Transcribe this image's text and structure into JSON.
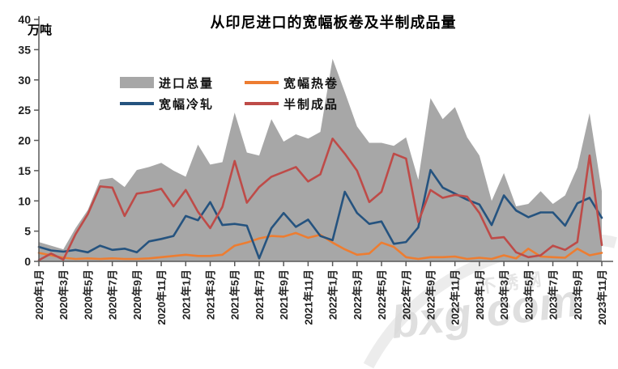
{
  "title": "从印尼进口的宽幅板卷及半制成品量",
  "y_axis_unit": "万吨",
  "watermark_text": "bxg·com",
  "watermark_cn": "不锈钢",
  "colors": {
    "total_area": "#A7A7A7",
    "hot_rolled": "#ED7D31",
    "cold_rolled": "#25537F",
    "semi_finished": "#BE4B48",
    "axis": "#595959",
    "tick_label": "#1F1F1F"
  },
  "legend": [
    {
      "key": "total-imports",
      "label": "进口总量",
      "swatch": "area",
      "color": "#A7A7A7"
    },
    {
      "key": "hot-rolled-coil",
      "label": "宽幅热卷",
      "swatch": "line",
      "color": "#ED7D31"
    },
    {
      "key": "cold-rolled",
      "label": "宽幅冷轧",
      "swatch": "line",
      "color": "#25537F"
    },
    {
      "key": "semi-finished",
      "label": "半制成品",
      "swatch": "line",
      "color": "#BE4B48"
    }
  ],
  "chart_data": {
    "type": "area+line",
    "title": "从印尼进口的宽幅板卷及半制成品量",
    "ylabel": "万吨",
    "ylim": [
      0,
      40
    ],
    "y_tick_interval": 5,
    "x_tick_step": 2,
    "grid": false,
    "legend_position": "inside-top-left",
    "x": [
      "2020年1月",
      "2020年2月",
      "2020年3月",
      "2020年4月",
      "2020年5月",
      "2020年6月",
      "2020年7月",
      "2020年8月",
      "2020年9月",
      "2020年10月",
      "2020年11月",
      "2020年12月",
      "2021年1月",
      "2021年2月",
      "2021年3月",
      "2021年4月",
      "2021年5月",
      "2021年6月",
      "2021年7月",
      "2021年8月",
      "2021年9月",
      "2021年10月",
      "2021年11月",
      "2021年12月",
      "2022年1月",
      "2022年2月",
      "2022年3月",
      "2022年4月",
      "2022年5月",
      "2022年6月",
      "2022年7月",
      "2022年8月",
      "2022年9月",
      "2022年10月",
      "2022年11月",
      "2022年12月",
      "2023年1月",
      "2023年2月",
      "2023年3月",
      "2023年4月",
      "2023年5月",
      "2023年6月",
      "2023年7月",
      "2023年8月",
      "2023年9月",
      "2023年10月",
      "2023年11月"
    ],
    "series": [
      {
        "key": "total-imports",
        "name": "进口总量",
        "render": "area",
        "color": "#A7A7A7",
        "values": [
          3.2,
          2.6,
          2.0,
          5.5,
          8.5,
          13.5,
          13.8,
          12.3,
          15.1,
          15.6,
          16.3,
          15.0,
          14.0,
          19.3,
          16.0,
          16.4,
          24.6,
          18.0,
          17.5,
          23.5,
          19.8,
          21.0,
          20.3,
          21.4,
          33.5,
          28.0,
          22.3,
          19.6,
          19.6,
          19.1,
          20.5,
          13.5,
          27.0,
          23.5,
          25.5,
          20.5,
          17.5,
          10.0,
          14.6,
          9.1,
          9.5,
          11.6,
          9.5,
          10.9,
          15.5,
          24.5,
          11.6
        ]
      },
      {
        "key": "hot-rolled-coil",
        "name": "宽幅热卷",
        "render": "line",
        "color": "#ED7D31",
        "values": [
          1.4,
          1.0,
          0.6,
          0.4,
          0.5,
          0.4,
          0.5,
          0.4,
          0.4,
          0.5,
          0.7,
          0.9,
          1.1,
          0.9,
          0.9,
          1.1,
          2.6,
          3.1,
          3.8,
          4.2,
          4.1,
          4.7,
          3.9,
          4.4,
          3.1,
          2.0,
          1.1,
          1.3,
          3.1,
          2.4,
          0.7,
          0.4,
          0.7,
          0.7,
          0.8,
          0.4,
          0.6,
          0.4,
          1.0,
          0.5,
          2.1,
          0.8,
          0.7,
          0.6,
          2.1,
          1.0,
          1.4
        ]
      },
      {
        "key": "cold-rolled",
        "name": "宽幅冷轧",
        "render": "line",
        "color": "#25537F",
        "values": [
          2.4,
          1.8,
          1.6,
          1.9,
          1.5,
          2.6,
          1.9,
          2.1,
          1.5,
          3.3,
          3.7,
          4.2,
          7.5,
          6.8,
          9.8,
          6.0,
          6.2,
          5.9,
          0.5,
          5.5,
          8.0,
          5.7,
          6.9,
          4.2,
          3.5,
          11.5,
          8.0,
          6.2,
          6.6,
          2.9,
          3.2,
          5.6,
          15.1,
          12.2,
          11.2,
          10.2,
          9.4,
          6.0,
          10.9,
          8.4,
          7.3,
          8.1,
          8.1,
          5.9,
          9.6,
          10.5,
          7.2
        ]
      },
      {
        "key": "semi-finished",
        "name": "半制成品",
        "render": "line",
        "color": "#BE4B48",
        "values": [
          0.2,
          1.3,
          0.3,
          4.5,
          7.8,
          12.4,
          12.2,
          7.5,
          11.2,
          11.5,
          12.0,
          9.1,
          11.8,
          8.2,
          5.5,
          9.0,
          16.6,
          9.7,
          12.3,
          14.0,
          14.8,
          15.6,
          13.2,
          14.4,
          20.3,
          17.8,
          15.0,
          9.8,
          11.5,
          17.8,
          17.0,
          6.5,
          11.8,
          10.5,
          11.0,
          10.7,
          8.0,
          3.8,
          4.0,
          1.5,
          0.7,
          1.0,
          2.6,
          1.9,
          3.2,
          17.5,
          2.7
        ]
      }
    ]
  }
}
